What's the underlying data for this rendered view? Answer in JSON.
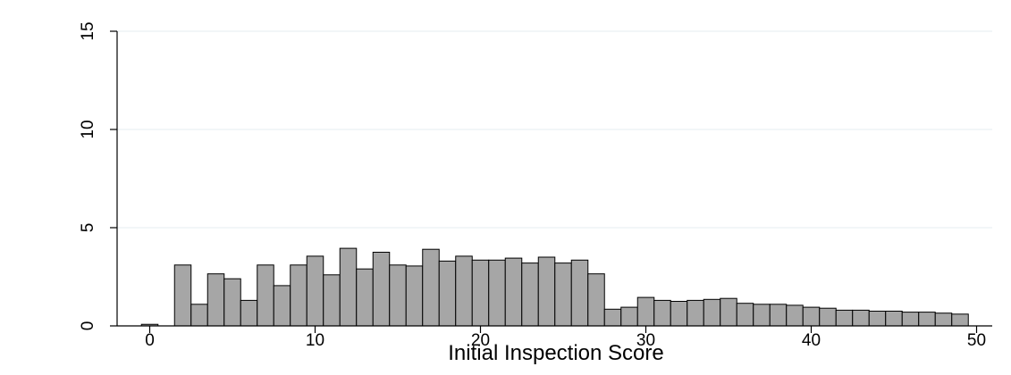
{
  "chart_data": {
    "type": "bar",
    "title": "",
    "xlabel": "Initial Inspection Score",
    "ylabel": "",
    "xlim": [
      -2,
      51
    ],
    "ylim": [
      0,
      15
    ],
    "bin_width": 1,
    "x_ticks": [
      0,
      10,
      20,
      30,
      40,
      50
    ],
    "y_ticks": [
      0,
      5,
      10,
      15
    ],
    "grid": true,
    "bar_color": "#a6a6a6",
    "edge_color": "#000000",
    "bins": [
      0,
      2,
      3,
      4,
      5,
      6,
      7,
      8,
      9,
      10,
      11,
      12,
      13,
      14,
      15,
      16,
      17,
      18,
      19,
      20,
      21,
      22,
      23,
      24,
      25,
      26,
      27,
      28,
      29,
      30,
      31,
      32,
      33,
      34,
      35,
      36,
      37,
      38,
      39,
      40,
      41,
      42,
      43,
      44,
      45,
      46,
      47,
      48,
      49
    ],
    "values": [
      0.08,
      3.1,
      1.1,
      2.65,
      2.4,
      1.3,
      3.1,
      2.05,
      3.1,
      3.55,
      2.6,
      3.95,
      2.9,
      3.75,
      3.1,
      3.05,
      3.9,
      3.3,
      3.55,
      3.35,
      3.35,
      3.45,
      3.2,
      3.5,
      3.2,
      3.35,
      2.65,
      0.85,
      0.95,
      1.45,
      1.3,
      1.25,
      1.3,
      1.35,
      1.4,
      1.15,
      1.1,
      1.1,
      1.05,
      0.95,
      0.9,
      0.8,
      0.8,
      0.75,
      0.75,
      0.7,
      0.7,
      0.65,
      0.6
    ]
  }
}
